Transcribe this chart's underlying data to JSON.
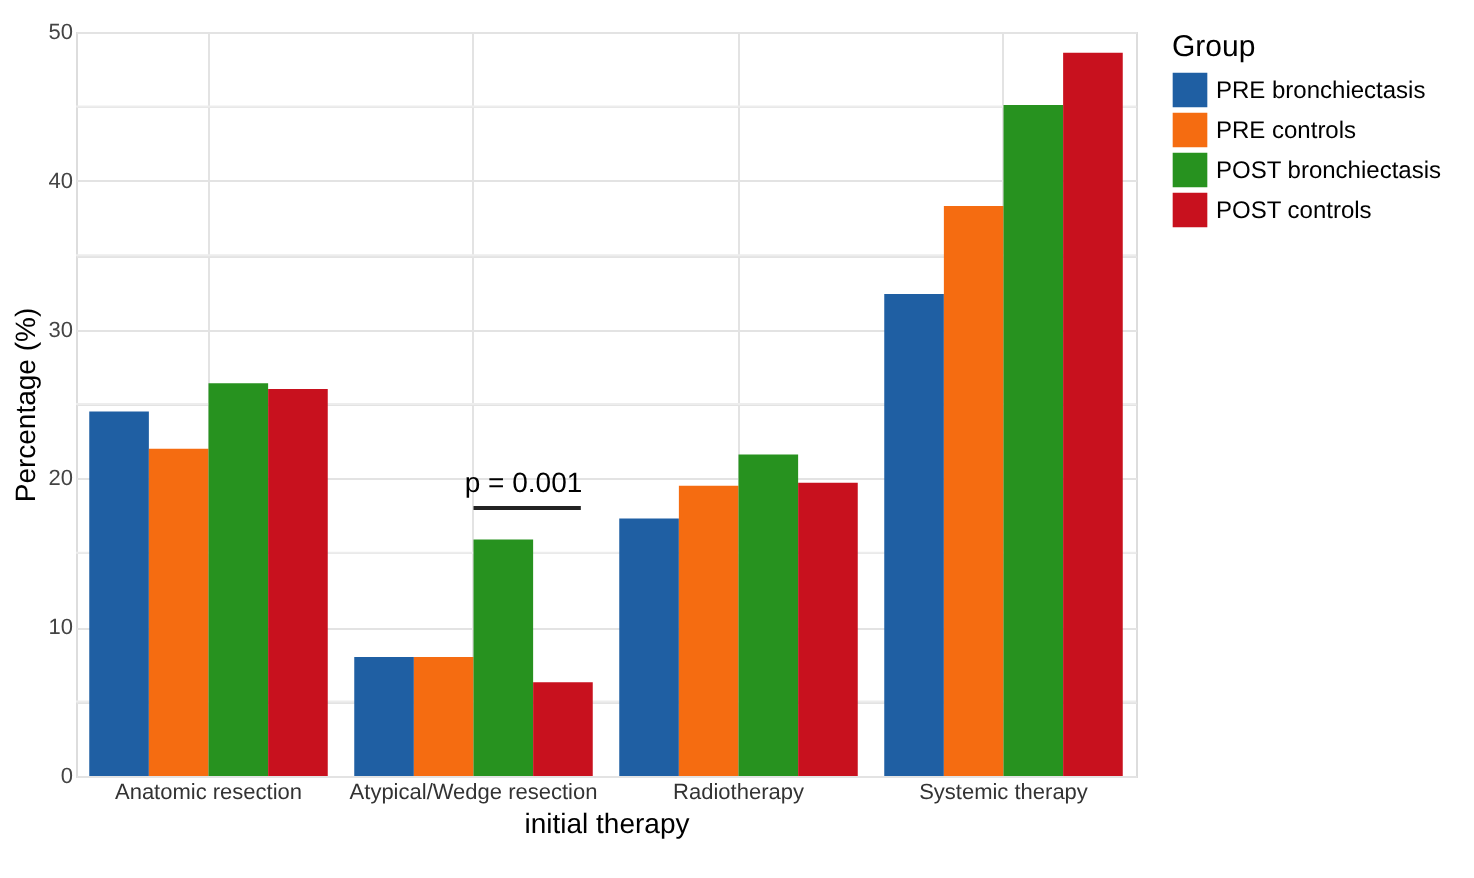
{
  "chart_data": {
    "type": "bar",
    "xlabel": "initial therapy",
    "ylabel": "Percentage (%)",
    "legend_title": "Group",
    "categories": [
      "Anatomic resection",
      "Atypical/Wedge resection",
      "Radiotherapy",
      "Systemic therapy"
    ],
    "series": [
      {
        "name": "PRE bronchiectasis",
        "color": "#1f5fa3",
        "values": [
          24.5,
          8.0,
          17.3,
          32.4
        ]
      },
      {
        "name": "PRE controls",
        "color": "#f56c11",
        "values": [
          22.0,
          8.0,
          19.5,
          38.3
        ]
      },
      {
        "name": "POST bronchiectasis",
        "color": "#27921f",
        "values": [
          26.4,
          15.9,
          21.6,
          45.1
        ]
      },
      {
        "name": "POST controls",
        "color": "#c8111e",
        "values": [
          26.0,
          6.3,
          19.7,
          48.6
        ]
      }
    ],
    "ylim": [
      0,
      50
    ],
    "yticks": [
      0,
      {
        "value": 5,
        "label": null
      },
      10,
      {
        "value": 15,
        "label": null
      },
      20,
      {
        "value": 25,
        "label": null
      },
      30,
      {
        "value": 35,
        "label": null
      },
      40,
      {
        "value": 45,
        "label": null
      },
      50
    ],
    "annotations": [
      "p = 0.001"
    ],
    "grid": true,
    "legend": "right"
  }
}
